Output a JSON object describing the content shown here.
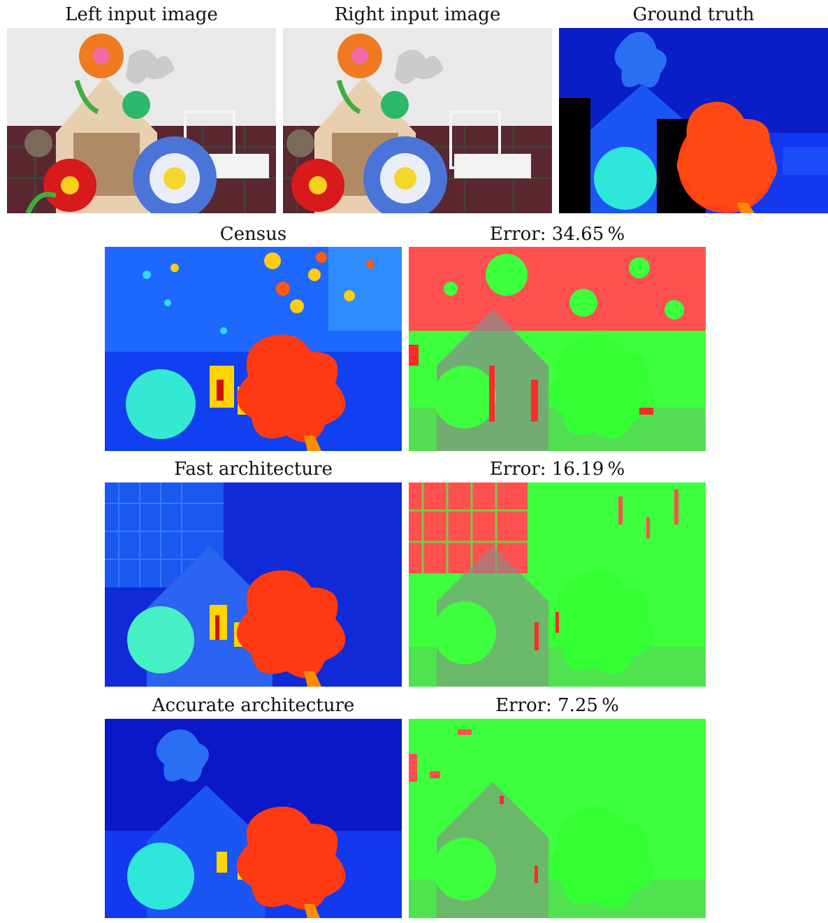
{
  "top_row": {
    "left_caption": "Left input image",
    "right_caption": "Right input image",
    "gt_caption": "Ground truth"
  },
  "rows": [
    {
      "method": "Census",
      "error_label": "Error:",
      "error_value": "34.65",
      "unit": "%"
    },
    {
      "method": "Fast architecture",
      "error_label": "Error:",
      "error_value": "16.19",
      "unit": "%"
    },
    {
      "method": "Accurate architecture",
      "error_label": "Error:",
      "error_value": "7.25",
      "unit": "%"
    }
  ],
  "colors": {
    "disparity_far": "#0a18c8",
    "disparity_mid": "#1f7cff",
    "disparity_near": "#ff3a10",
    "error_bad": "#ff4d4d",
    "error_good": "#33ff33"
  }
}
